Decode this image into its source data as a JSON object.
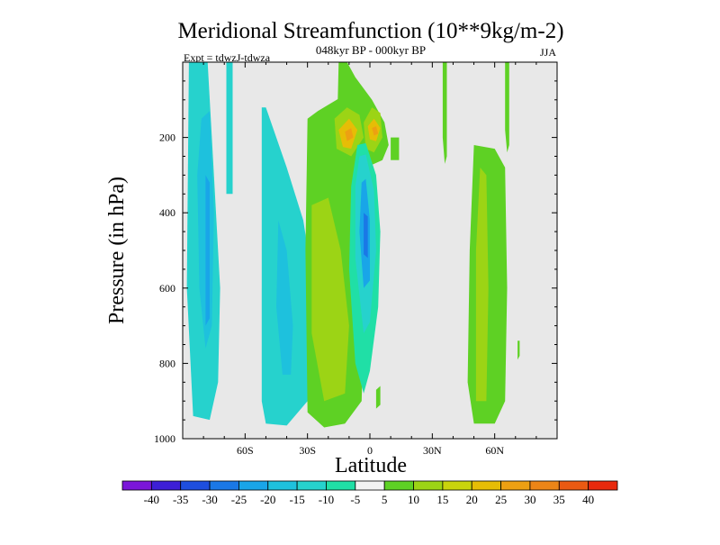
{
  "chart_data": {
    "type": "heatmap",
    "title": "Meridional Streamfunction (10**9kg/m-2)",
    "subtitle": "048kyr BP - 000kyr BP",
    "experiment": "Expt = tdwzJ-tdwza",
    "season": "JJA",
    "xlabel": "Latitude",
    "ylabel": "Pressure (in hPa)",
    "xlim": [
      -90,
      90
    ],
    "ylim": [
      1000,
      0
    ],
    "y_reversed": true,
    "x_ticks": [
      {
        "value": -60,
        "label": "60S"
      },
      {
        "value": -30,
        "label": "30S"
      },
      {
        "value": 0,
        "label": "0"
      },
      {
        "value": 30,
        "label": "30N"
      },
      {
        "value": 60,
        "label": "60N"
      }
    ],
    "y_ticks": [
      {
        "value": 200,
        "label": "200"
      },
      {
        "value": 400,
        "label": "400"
      },
      {
        "value": 600,
        "label": "600"
      },
      {
        "value": 800,
        "label": "800"
      },
      {
        "value": 1000,
        "label": "1000"
      }
    ],
    "plot_background": "#e8e8e8",
    "colorbar": {
      "colors": [
        "#7b16d9",
        "#3d1fd6",
        "#1e4ede",
        "#1a78e6",
        "#19a5e8",
        "#1ec1dd",
        "#26d2cd",
        "#20dfa6",
        "#f2f2f2",
        "#5ed124",
        "#9cd415",
        "#c9d40c",
        "#e6bd06",
        "#eda012",
        "#ec8517",
        "#ea5a12",
        "#e8290d"
      ],
      "labels": [
        "-40",
        "-35",
        "-30",
        "-25",
        "-20",
        "-15",
        "-10",
        "-5",
        "5",
        "10",
        "15",
        "20",
        "25",
        "30",
        "35",
        "40"
      ]
    },
    "features": [
      {
        "name": "SH high-latitude cell",
        "level": -10,
        "lat_range": [
          -87,
          -70
        ],
        "p_range": [
          0,
          950
        ]
      },
      {
        "name": "SH high-latitude core",
        "level": -15,
        "lat_range": [
          -82,
          -75
        ],
        "p_range": [
          130,
          750
        ]
      },
      {
        "name": "SH mid-latitude cell",
        "level": -10,
        "lat_range": [
          -52,
          -25
        ],
        "p_range": [
          150,
          965
        ]
      },
      {
        "name": "SH mid-latitude core",
        "level": -15,
        "lat_range": [
          -45,
          -37
        ],
        "p_range": [
          420,
          830
        ]
      },
      {
        "name": "Southern tropical positive cell",
        "level": 5,
        "lat_range": [
          -30,
          -5
        ],
        "p_range": [
          0,
          970
        ]
      },
      {
        "name": "Southern tropical core",
        "level": 10,
        "lat_range": [
          -28,
          -10
        ],
        "p_range": [
          400,
          900
        ]
      },
      {
        "name": "Upper-tropospheric maxima",
        "level": 25,
        "lat_range": [
          -15,
          5
        ],
        "p_range": [
          120,
          260
        ]
      },
      {
        "name": "Equatorial negative cell",
        "level": -25,
        "lat_range": [
          -8,
          5
        ],
        "p_range": [
          230,
          880
        ]
      },
      {
        "name": "NH mid-latitude positive cell",
        "level": 5,
        "lat_range": [
          47,
          67
        ],
        "p_range": [
          0,
          960
        ]
      },
      {
        "name": "NH mid-latitude core",
        "level": 10,
        "lat_range": [
          50,
          58
        ],
        "p_range": [
          280,
          910
        ]
      }
    ]
  }
}
